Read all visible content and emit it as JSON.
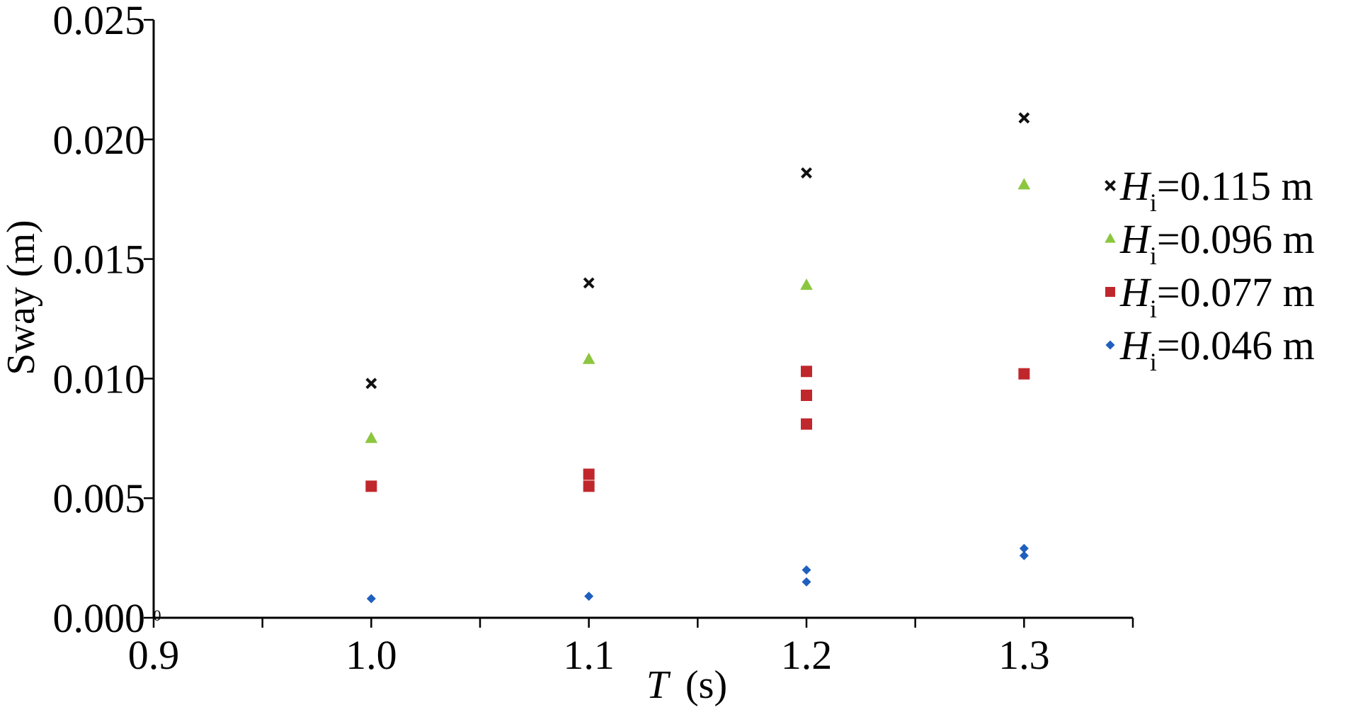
{
  "chart_data": {
    "type": "scatter",
    "title": "",
    "xlabel": {
      "symbol": "T",
      "unit": "(s)"
    },
    "ylabel": "Sway (m)",
    "xlim": [
      0.9,
      1.35
    ],
    "ylim": [
      0.0,
      0.025
    ],
    "x_ticks": [
      "0.9",
      "1.0",
      "1.1",
      "1.2",
      "1.3"
    ],
    "y_ticks": [
      "0.000",
      "0.005",
      "0.010",
      "0.015",
      "0.020",
      "0.025"
    ],
    "origin_label": "0",
    "grid": false,
    "legend_position": "right",
    "series": [
      {
        "name": {
          "symbol": "H",
          "subscript": "i",
          "value": "=0.115 m"
        },
        "marker": "x",
        "color": "#111111",
        "points": [
          [
            1.0,
            0.0098
          ],
          [
            1.1,
            0.014
          ],
          [
            1.2,
            0.0186
          ],
          [
            1.3,
            0.0209
          ]
        ]
      },
      {
        "name": {
          "symbol": "H",
          "subscript": "i",
          "value": "=0.096 m"
        },
        "marker": "triangle",
        "color": "#8cc63f",
        "points": [
          [
            1.0,
            0.0075
          ],
          [
            1.1,
            0.0108
          ],
          [
            1.2,
            0.0139
          ],
          [
            1.3,
            0.0181
          ]
        ]
      },
      {
        "name": {
          "symbol": "H",
          "subscript": "i",
          "value": "=0.077 m"
        },
        "marker": "square",
        "color": "#c0272d",
        "points": [
          [
            1.0,
            0.0055
          ],
          [
            1.1,
            0.006
          ],
          [
            1.1,
            0.0055
          ],
          [
            1.2,
            0.0103
          ],
          [
            1.2,
            0.0093
          ],
          [
            1.2,
            0.0081
          ],
          [
            1.3,
            0.0102
          ]
        ]
      },
      {
        "name": {
          "symbol": "H",
          "subscript": "i",
          "value": "=0.046 m"
        },
        "marker": "diamond",
        "color": "#1f5fbf",
        "points": [
          [
            1.0,
            0.0008
          ],
          [
            1.1,
            0.0009
          ],
          [
            1.2,
            0.002
          ],
          [
            1.2,
            0.0015
          ],
          [
            1.3,
            0.0029
          ],
          [
            1.3,
            0.0026
          ]
        ]
      }
    ]
  }
}
